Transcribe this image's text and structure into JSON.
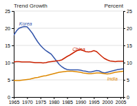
{
  "chart_data": {
    "type": "line",
    "title": "Trend Growth",
    "y2label": "Percent",
    "x": [
      1965,
      1966,
      1967,
      1968,
      1969,
      1970,
      1971,
      1972,
      1973,
      1974,
      1975,
      1976,
      1977,
      1978,
      1979,
      1980,
      1981,
      1982,
      1983,
      1984,
      1985,
      1986,
      1987,
      1988,
      1989,
      1990,
      1991,
      1992,
      1993,
      1994,
      1995,
      1996,
      1997,
      1998,
      1999,
      2000,
      2001,
      2002,
      2003,
      2004,
      2005,
      2006
    ],
    "series": [
      {
        "name": "Korea",
        "color": "#3355aa",
        "values": [
          18.0,
          19.2,
          20.0,
          20.3,
          20.5,
          20.4,
          19.5,
          18.5,
          17.2,
          16.0,
          15.0,
          14.2,
          13.5,
          13.0,
          12.5,
          11.5,
          10.5,
          9.5,
          8.8,
          8.3,
          8.0,
          7.9,
          7.9,
          7.9,
          7.9,
          7.8,
          7.6,
          7.5,
          7.3,
          7.3,
          7.5,
          7.7,
          7.6,
          7.2,
          7.0,
          7.2,
          7.4,
          7.6,
          7.8,
          8.0,
          8.1,
          8.2
        ]
      },
      {
        "name": "China",
        "color": "#cc2200",
        "values": [
          10.2,
          10.3,
          10.3,
          10.2,
          10.2,
          10.2,
          10.2,
          10.1,
          10.0,
          10.0,
          10.0,
          9.9,
          10.0,
          10.2,
          10.3,
          10.4,
          10.5,
          10.6,
          10.8,
          11.3,
          11.8,
          12.2,
          12.7,
          13.2,
          13.6,
          13.8,
          13.5,
          13.2,
          13.1,
          13.2,
          13.5,
          13.2,
          12.5,
          11.8,
          11.2,
          10.8,
          10.5,
          10.4,
          10.3,
          10.4,
          10.4,
          10.4
        ]
      },
      {
        "name": "India",
        "color": "#dd8800",
        "values": [
          4.8,
          4.8,
          4.8,
          4.9,
          5.0,
          5.1,
          5.2,
          5.4,
          5.6,
          5.7,
          5.9,
          6.1,
          6.2,
          6.4,
          6.6,
          6.8,
          7.0,
          7.2,
          7.3,
          7.4,
          7.5,
          7.5,
          7.5,
          7.4,
          7.3,
          7.2,
          7.0,
          6.9,
          6.8,
          6.8,
          6.9,
          7.0,
          7.0,
          6.9,
          6.8,
          6.7,
          6.8,
          7.0,
          7.2,
          7.3,
          7.4,
          7.5
        ]
      }
    ],
    "xlim": [
      1965,
      2006
    ],
    "xticks": [
      1965,
      1970,
      1975,
      1980,
      1985,
      1990,
      1995,
      2000,
      2005
    ],
    "ylim": [
      0,
      25
    ],
    "yticks": [
      0,
      5,
      10,
      15,
      20,
      25
    ],
    "y2lim": [
      0,
      25
    ],
    "y2ticks": [
      0,
      5,
      10,
      15,
      20,
      25
    ],
    "grid": true
  }
}
